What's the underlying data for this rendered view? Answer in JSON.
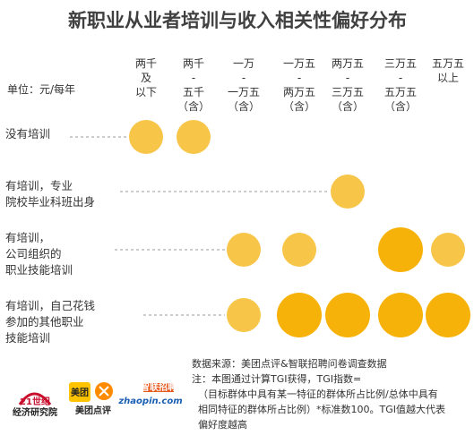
{
  "chart_data": {
    "type": "bubble",
    "title": "新职业从业者培训与收入相关性偏好分布",
    "unit_label": "单位：元/每年",
    "columns": [
      [
        "两千",
        "及",
        "以下"
      ],
      [
        "两千",
        "-",
        "五千",
        "（含）"
      ],
      [
        "一万",
        "-",
        "一万五",
        "（含）"
      ],
      [
        "一万五",
        "-",
        "两万五",
        "（含）"
      ],
      [
        "两万五",
        "-",
        "三万五",
        "（含）"
      ],
      [
        "三万五",
        "-",
        "五万五",
        "（含）"
      ],
      [
        "五万五",
        "以上"
      ]
    ],
    "rows": [
      {
        "label": [
          "没有培训"
        ],
        "values": [
          1,
          1,
          0,
          0,
          0,
          0,
          0
        ]
      },
      {
        "label": [
          "有培训，专业",
          "院校毕业科班出身"
        ],
        "values": [
          0,
          0,
          0,
          0,
          1,
          0,
          0
        ]
      },
      {
        "label": [
          "有培训，",
          "公司组织的",
          "职业技能培训"
        ],
        "values": [
          0,
          0,
          1,
          1,
          0,
          2,
          1
        ]
      },
      {
        "label": [
          "有培训，自己花钱",
          "参加的其他职业",
          "技能培训"
        ],
        "values": [
          0,
          0,
          1,
          2,
          2,
          2,
          2
        ]
      }
    ],
    "legend_colors": {
      "light": "#f7c548",
      "strong": "#f7b20a"
    },
    "source_note": [
      "数据来源：美团点评&智联招聘问卷调查数据",
      "注：本图通过计算TGI获得，TGI指数=",
      "（目标群体中具有某一特征的群体所占比例/总体中具有",
      "相同特征的群体所占比例）*标准数100。TGI值越大代表",
      "偏好度越高"
    ]
  },
  "logos": {
    "logo1_line1": "21世纪",
    "logo1_line2": "经济研究院",
    "logo2_badge": "美团",
    "logo2_text": "美团点评",
    "logo3_top": "智联招聘",
    "logo3_main": "zhaopin.com"
  }
}
